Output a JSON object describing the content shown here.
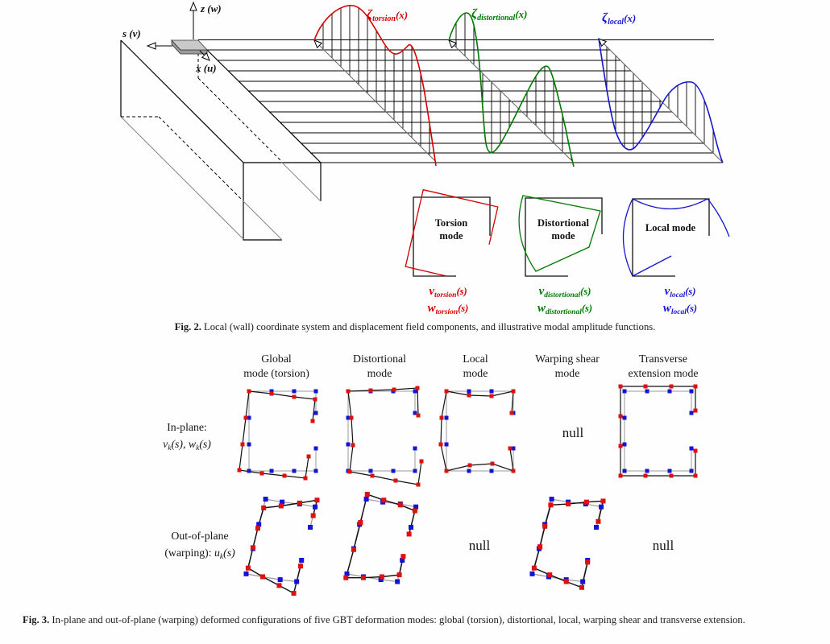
{
  "colors": {
    "red": "#d40000",
    "green": "#007a00",
    "blue": "#1515cf",
    "marker_red": "#e01010",
    "marker_blue": "#1414d2",
    "gray_line": "#8a8a8a"
  },
  "fig2": {
    "axes": {
      "z": "z (w)",
      "s": "s (v)",
      "x": "x (u)"
    },
    "amplitude_labels": [
      {
        "sym": "ζ",
        "sub": "torsion",
        "arg": "(x)"
      },
      {
        "sym": "ζ",
        "sub": "distortional",
        "arg": "(x)"
      },
      {
        "sym": "ζ",
        "sub": "local",
        "arg": "(x)"
      }
    ],
    "modes": [
      {
        "title1": "Torsion",
        "title2": "mode",
        "v_sym": "v",
        "v_sub": "torsion",
        "v_arg": "(s)",
        "w_sym": "w",
        "w_sub": "torsion",
        "w_arg": "(s)"
      },
      {
        "title1": "Distortional",
        "title2": "mode",
        "v_sym": "v",
        "v_sub": "distortional",
        "v_arg": "(s)",
        "w_sym": "w",
        "w_sub": "distortional",
        "w_arg": "(s)"
      },
      {
        "title1": "Local mode",
        "title2": "",
        "v_sym": "v",
        "v_sub": "local",
        "v_arg": "(s)",
        "w_sym": "w",
        "w_sub": "local",
        "w_arg": "(s)"
      }
    ],
    "caption_tag": "Fig. 2.",
    "caption_text": "Local (wall) coordinate system and displacement field components, and illustrative modal amplitude functions."
  },
  "fig3": {
    "columns": [
      {
        "line1": "Global",
        "line2": "mode (torsion)"
      },
      {
        "line1": "Distortional",
        "line2": "mode"
      },
      {
        "line1": "Local",
        "line2": "mode"
      },
      {
        "line1": "Warping shear",
        "line2": "mode"
      },
      {
        "line1": "Transverse",
        "line2": "extension mode"
      }
    ],
    "row1": {
      "line1": "In-plane:",
      "v": "v",
      "vsub": "k",
      "vrest": "(s), ",
      "w": "w",
      "wsub": "k",
      "wrest": "(s)"
    },
    "row2": {
      "line1": "Out-of-plane",
      "pre": "(warping): ",
      "u": "u",
      "usub": "k",
      "urest": "(s)"
    },
    "null_text": "null",
    "caption_tag": "Fig. 3.",
    "caption_text": "In-plane and out-of-plane (warping) deformed configurations of five GBT deformation modes: global (torsion), distortional, local, warping shear and transverse extension."
  }
}
